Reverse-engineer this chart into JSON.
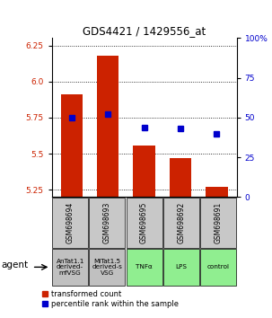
{
  "title": "GDS4421 / 1429556_at",
  "samples": [
    "GSM698694",
    "GSM698693",
    "GSM698695",
    "GSM698692",
    "GSM698691"
  ],
  "agents": [
    "AnTat1.1\nderived-\nmfVSG",
    "MiTat1.5\nderived-s\nVSG",
    "TNFα",
    "LPS",
    "control"
  ],
  "agent_colors": [
    "#c0c0c0",
    "#c0c0c0",
    "#90ee90",
    "#90ee90",
    "#90ee90"
  ],
  "transformed_counts": [
    5.91,
    6.18,
    5.56,
    5.47,
    5.27
  ],
  "percentile_ranks": [
    50,
    52,
    44,
    43,
    40
  ],
  "ylim_left": [
    5.2,
    6.3
  ],
  "ylim_right": [
    0,
    100
  ],
  "yticks_left": [
    5.25,
    5.5,
    5.75,
    6.0,
    6.25
  ],
  "yticks_right": [
    0,
    25,
    50,
    75,
    100
  ],
  "bar_color": "#cc2200",
  "dot_color": "#0000cc",
  "left_axis_color": "#cc2200",
  "right_axis_color": "#0000cc",
  "legend_labels": [
    "transformed count",
    "percentile rank within the sample"
  ],
  "agent_label": "agent"
}
